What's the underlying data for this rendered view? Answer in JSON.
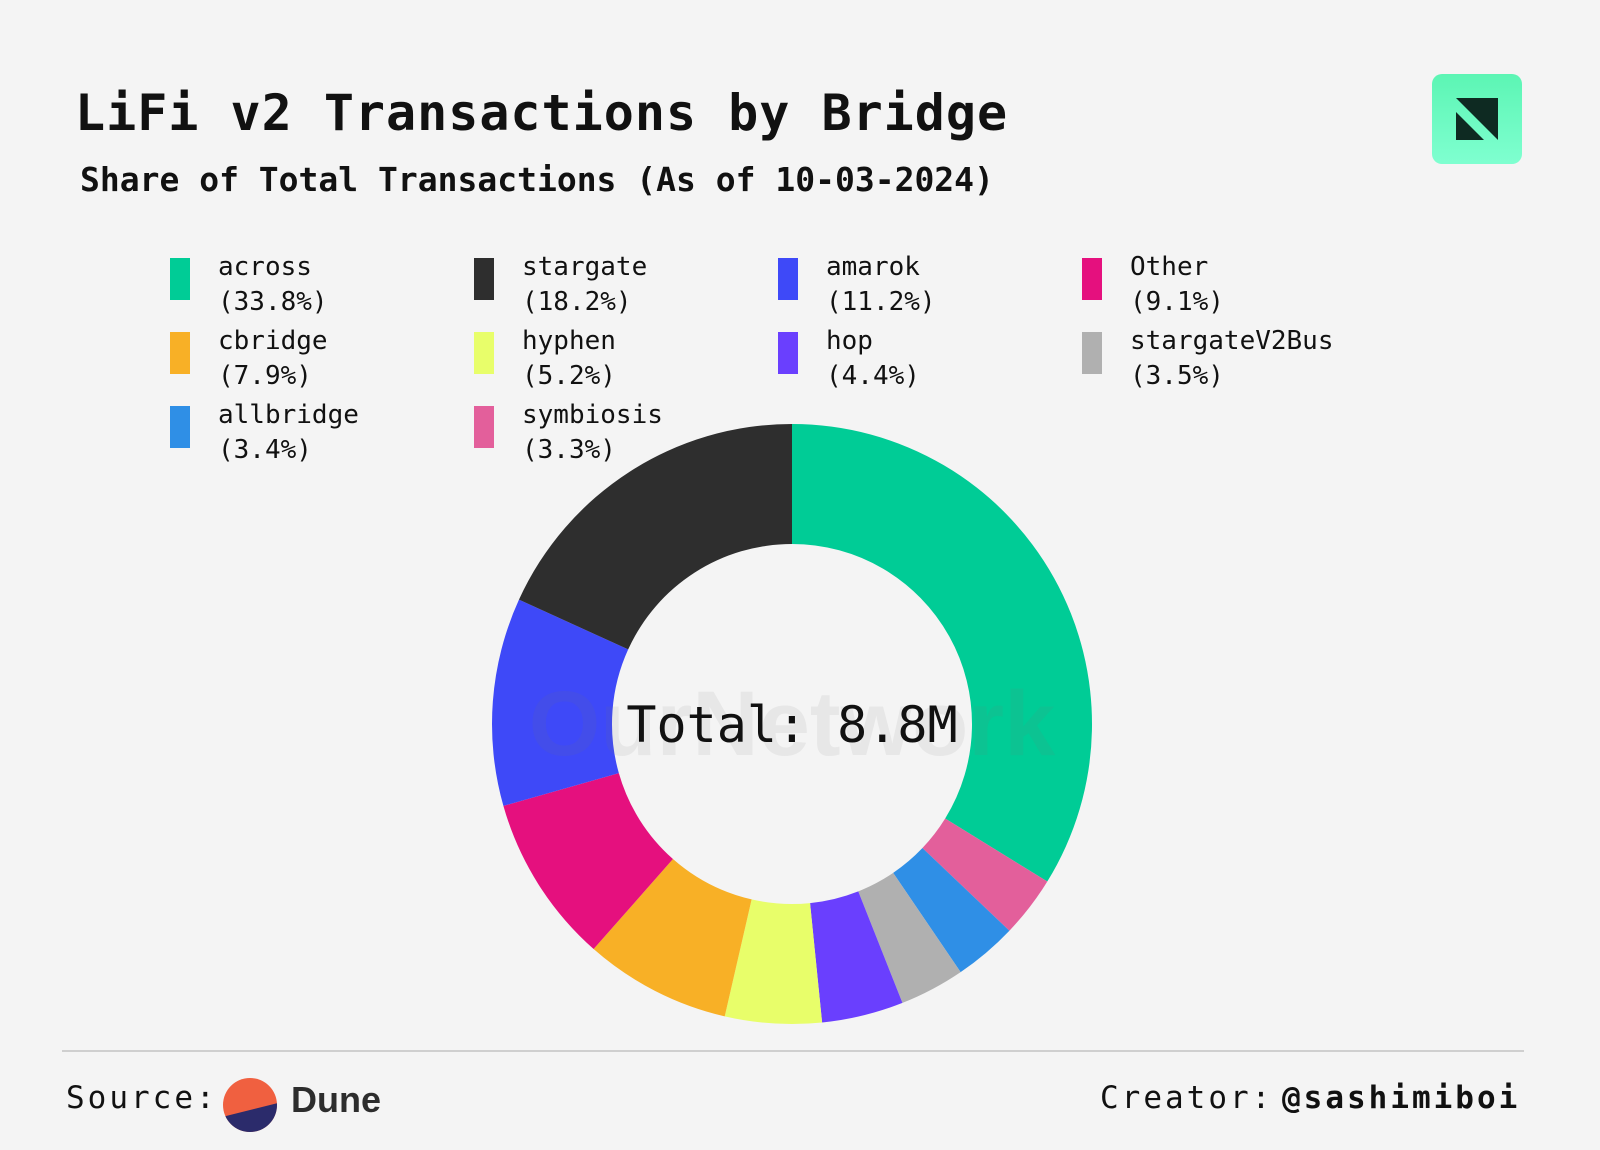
{
  "header": {
    "title": "LiFi v2 Transactions by Bridge",
    "subtitle": "Share of Total Transactions (As of 10-03-2024)"
  },
  "chart_data": {
    "type": "pie",
    "style": "donut",
    "center_label": "Total: 8.8M",
    "watermark": "OurNetwork",
    "legend_position": "top",
    "slices": [
      {
        "label": "across",
        "pct_label": "(33.8%)",
        "value": 33.8,
        "color": "#00cc96"
      },
      {
        "label": "symbiosis",
        "pct_label": "(3.3%)",
        "value": 3.3,
        "color": "#e35f9b"
      },
      {
        "label": "allbridge",
        "pct_label": "(3.4%)",
        "value": 3.4,
        "color": "#2f8fe6"
      },
      {
        "label": "stargateV2Bus",
        "pct_label": "(3.5%)",
        "value": 3.5,
        "color": "#b0b0b0"
      },
      {
        "label": "hop",
        "pct_label": "(4.4%)",
        "value": 4.4,
        "color": "#6a3ffe"
      },
      {
        "label": "hyphen",
        "pct_label": "(5.2%)",
        "value": 5.2,
        "color": "#e8fe6a"
      },
      {
        "label": "cbridge",
        "pct_label": "(7.9%)",
        "value": 7.9,
        "color": "#f8b026"
      },
      {
        "label": "Other",
        "pct_label": "(9.1%)",
        "value": 9.1,
        "color": "#e5107e"
      },
      {
        "label": "amarok",
        "pct_label": "(11.2%)",
        "value": 11.2,
        "color": "#3e49f8"
      },
      {
        "label": "stargate",
        "pct_label": "(18.2%)",
        "value": 18.2,
        "color": "#2e2e2e"
      }
    ],
    "legend": [
      {
        "label": "across",
        "pct_label": "(33.8%)",
        "color": "#00cc96"
      },
      {
        "label": "stargate",
        "pct_label": "(18.2%)",
        "color": "#2e2e2e"
      },
      {
        "label": "amarok",
        "pct_label": "(11.2%)",
        "color": "#3e49f8"
      },
      {
        "label": "Other",
        "pct_label": "(9.1%)",
        "color": "#e5107e"
      },
      {
        "label": "cbridge",
        "pct_label": "(7.9%)",
        "color": "#f8b026"
      },
      {
        "label": "hyphen",
        "pct_label": "(5.2%)",
        "color": "#e8fe6a"
      },
      {
        "label": "hop",
        "pct_label": "(4.4%)",
        "color": "#6a3ffe"
      },
      {
        "label": "stargateV2Bus",
        "pct_label": "(3.5%)",
        "color": "#b0b0b0"
      },
      {
        "label": "allbridge",
        "pct_label": "(3.4%)",
        "color": "#2f8fe6"
      },
      {
        "label": "symbiosis",
        "pct_label": "(3.3%)",
        "color": "#e35f9b"
      }
    ]
  },
  "footer": {
    "source_label": "Source:",
    "source_name": "Dune",
    "creator_label": "Creator:",
    "creator_handle": "@sashimiboi"
  },
  "icons": {
    "brand_logo": "ournetwork-logo-icon",
    "source_logo": "dune-logo-icon"
  }
}
